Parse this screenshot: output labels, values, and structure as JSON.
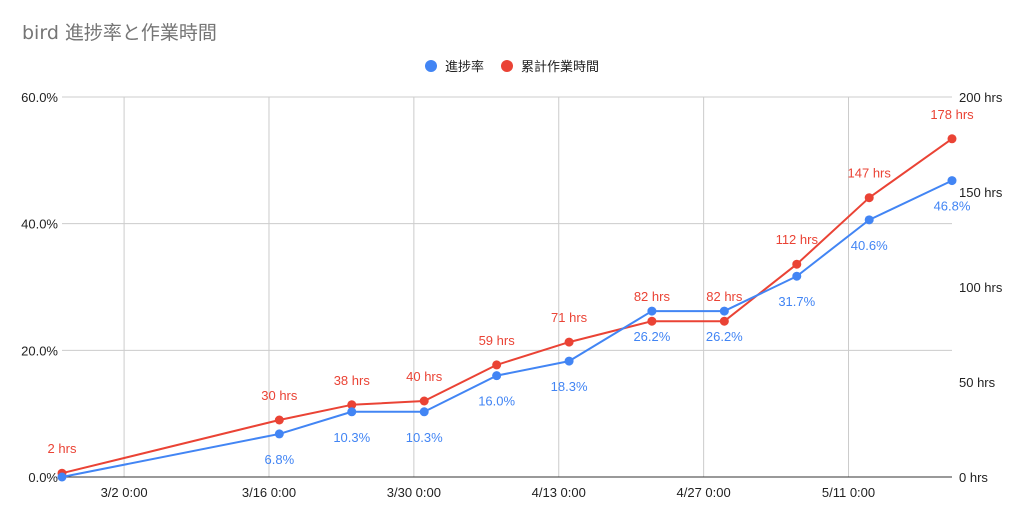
{
  "chart_data": {
    "type": "line",
    "title": "bird 進捗率と作業時間",
    "x_tick_labels": [
      "3/2 0:00",
      "3/16 0:00",
      "3/30 0:00",
      "4/13 0:00",
      "4/27 0:00",
      "5/11 0:00"
    ],
    "y_left": {
      "ticks": [
        0,
        20,
        40,
        60
      ],
      "tick_labels": [
        "0.0%",
        "20.0%",
        "40.0%",
        "60.0%"
      ],
      "range": [
        0,
        60
      ]
    },
    "y_right": {
      "ticks": [
        0,
        50,
        100,
        150,
        200
      ],
      "tick_labels": [
        "0 hrs",
        "50 hrs",
        "100 hrs",
        "150 hrs",
        "200 hrs"
      ],
      "range": [
        0,
        200
      ]
    },
    "x": [
      "2/24",
      "3/17",
      "3/24",
      "3/31",
      "4/7",
      "4/14",
      "4/22",
      "4/29",
      "5/6",
      "5/13",
      "5/21"
    ],
    "x_range": [
      "2/24",
      "5/21"
    ],
    "grid": true,
    "legend_position": "top",
    "series": [
      {
        "name": "進捗率",
        "axis": "left",
        "color": "#4285f4",
        "values": [
          0,
          6.8,
          10.3,
          10.3,
          16.0,
          18.3,
          26.2,
          26.2,
          31.7,
          40.6,
          46.8
        ],
        "labels": [
          "",
          "6.8%",
          "10.3%",
          "10.3%",
          "16.0%",
          "18.3%",
          "26.2%",
          "26.2%",
          "31.7%",
          "40.6%",
          "46.8%"
        ]
      },
      {
        "name": "累計作業時間",
        "axis": "right",
        "color": "#ea4335",
        "values": [
          2,
          30,
          38,
          40,
          59,
          71,
          82,
          82,
          112,
          147,
          178
        ],
        "labels": [
          "2 hrs",
          "30 hrs",
          "38 hrs",
          "40 hrs",
          "59 hrs",
          "71 hrs",
          "82 hrs",
          "82 hrs",
          "112 hrs",
          "147 hrs",
          "178 hrs"
        ]
      }
    ]
  }
}
